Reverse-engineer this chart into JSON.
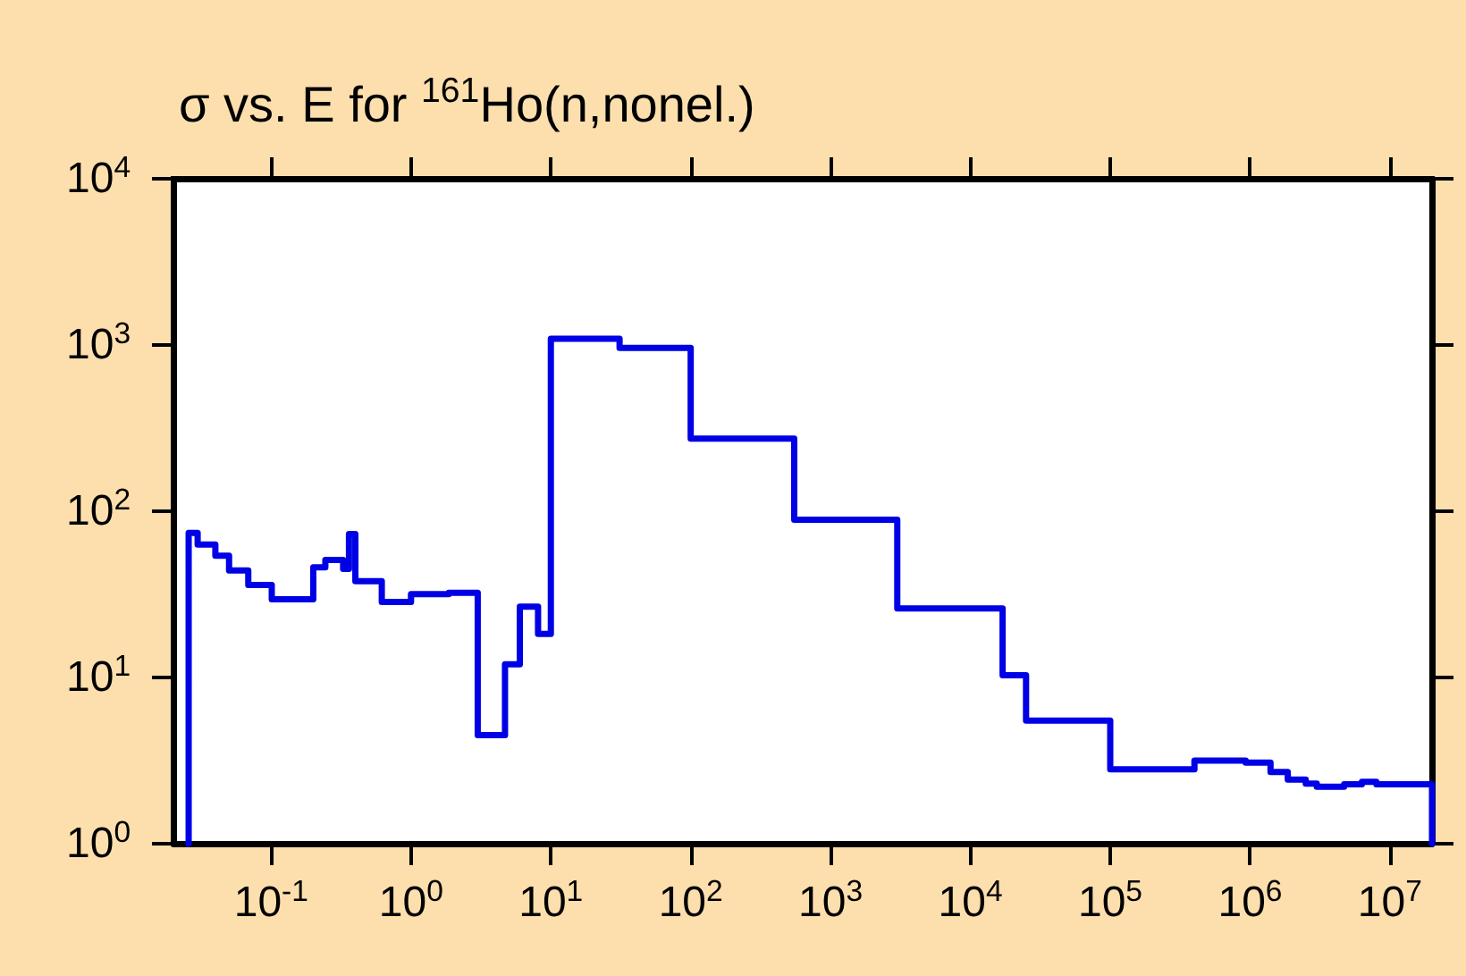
{
  "chart_data": {
    "type": "step",
    "title": "σ vs. E for $^{161}$Ho(n,nonel.)",
    "log": "xy",
    "grid": false,
    "marker": "none",
    "line_style": "solid",
    "xlim": [
      0.02,
      20000000
    ],
    "ylim": [
      1,
      10000
    ],
    "xticks": [
      {
        "value": 0.1,
        "label": "10$^{-1}$"
      },
      {
        "value": 1,
        "label": "10$^{0}$"
      },
      {
        "value": 10,
        "label": "10$^{1}$"
      },
      {
        "value": 100,
        "label": "10$^{2}$"
      },
      {
        "value": 1000,
        "label": "10$^{3}$"
      },
      {
        "value": 10000,
        "label": "10$^{4}$"
      },
      {
        "value": 100000,
        "label": "10$^{5}$"
      },
      {
        "value": 1000000,
        "label": "10$^{6}$"
      },
      {
        "value": 10000000,
        "label": "10$^{7}$"
      }
    ],
    "yticks": [
      {
        "value": 1,
        "label": "10$^{0}$"
      },
      {
        "value": 10,
        "label": "10$^{1}$"
      },
      {
        "value": 100,
        "label": "10$^{2}$"
      },
      {
        "value": 1000,
        "label": "10$^{3}$"
      },
      {
        "value": 10000,
        "label": "10$^{4}$"
      }
    ],
    "series": [
      {
        "color": "#0000e6",
        "x": [
          0.0257,
          0.0257,
          0.0298,
          0.0399,
          0.05,
          0.0686,
          0.101,
          0.2,
          0.244,
          0.327,
          0.36,
          0.4,
          0.618,
          1.0,
          1.86,
          3.0,
          4.7,
          6.0,
          8.1,
          10,
          31,
          100,
          550,
          3000,
          17000,
          25000,
          100000,
          400000,
          930000,
          1400000,
          1860000,
          2500000,
          3000000,
          4700000,
          6300000,
          8000000,
          20000000
        ],
        "values": [
          1,
          74,
          63,
          54,
          44,
          36,
          29.5,
          46,
          51,
          45,
          73,
          38,
          28.5,
          31.7,
          32.3,
          4.5,
          12,
          26.7,
          18.3,
          1090,
          960,
          273,
          89,
          26,
          10.3,
          5.5,
          2.8,
          3.16,
          3.08,
          2.7,
          2.43,
          2.3,
          2.2,
          2.28,
          2.36,
          2.28,
          1
        ]
      }
    ]
  }
}
